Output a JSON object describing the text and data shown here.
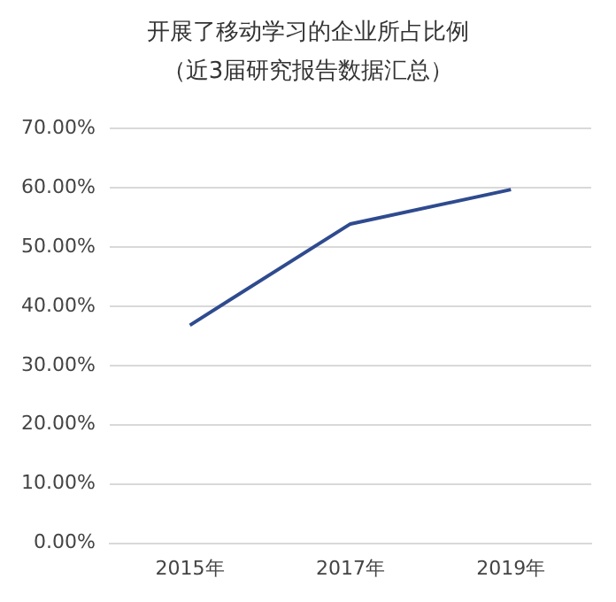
{
  "chart_data": {
    "type": "line",
    "title": "开展了移动学习的企业所占比例",
    "subtitle": "（近3届研究报告数据汇总）",
    "categories": [
      "2015年",
      "2017年",
      "2019年"
    ],
    "series": [
      {
        "color": "#2f4b8f",
        "values": [
          36.8,
          53.9,
          59.7
        ]
      }
    ],
    "ylim": [
      0,
      70
    ],
    "yticks": [
      {
        "value": 0,
        "label": "0.00%"
      },
      {
        "value": 10,
        "label": "10.00%"
      },
      {
        "value": 20,
        "label": "20.00%"
      },
      {
        "value": 30,
        "label": "30.00%"
      },
      {
        "value": 40,
        "label": "40.00%"
      },
      {
        "value": 50,
        "label": "50.00%"
      },
      {
        "value": 60,
        "label": "60.00%"
      },
      {
        "value": 70,
        "label": "70.00%"
      }
    ],
    "grid": "y",
    "marker": "none",
    "line_style": "solid"
  }
}
